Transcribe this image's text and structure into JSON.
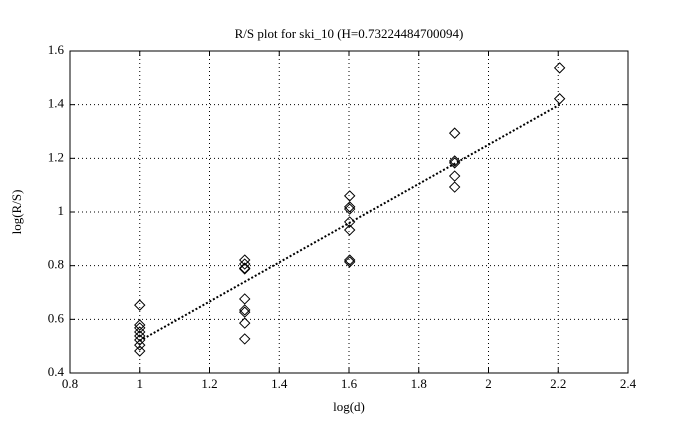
{
  "chart_data": {
    "type": "scatter",
    "title": "R/S plot for ski_10 (H=0.73224484700094)",
    "x_label": "log(d)",
    "y_label": "log(R/S)",
    "xlim": [
      0.8,
      2.4
    ],
    "xticks": [
      0.8,
      1,
      1.2,
      1.4,
      1.6,
      1.8,
      2,
      2.2,
      2.4
    ],
    "ylim": [
      0.4,
      1.6
    ],
    "yticks": [
      0.4,
      0.6,
      0.8,
      1,
      1.2,
      1.4,
      1.6
    ],
    "grid": true,
    "series": [
      {
        "marker": "diamond",
        "color": "#000000",
        "x": [
          1,
          1,
          1,
          1,
          1,
          1,
          1,
          1,
          1.301,
          1.301,
          1.301,
          1.301,
          1.301,
          1.301,
          1.301,
          1.301,
          1.301,
          1.602,
          1.602,
          1.602,
          1.602,
          1.602,
          1.602,
          1.602,
          1.903,
          1.903,
          1.903,
          1.903,
          1.903,
          2.204,
          2.204
        ],
        "values": [
          0.653,
          0.579,
          0.568,
          0.553,
          0.538,
          0.523,
          0.504,
          0.482,
          0.821,
          0.806,
          0.791,
          0.788,
          0.676,
          0.635,
          0.627,
          0.586,
          0.527,
          1.06,
          1.019,
          1.011,
          0.963,
          0.933,
          0.821,
          0.814,
          1.294,
          1.19,
          1.183,
          1.134,
          1.093,
          1.537,
          1.422
        ]
      },
      {
        "line": "dotted",
        "color": "#000000",
        "x": [
          1,
          2.204
        ],
        "values": [
          0.52,
          1.4
        ]
      }
    ]
  }
}
